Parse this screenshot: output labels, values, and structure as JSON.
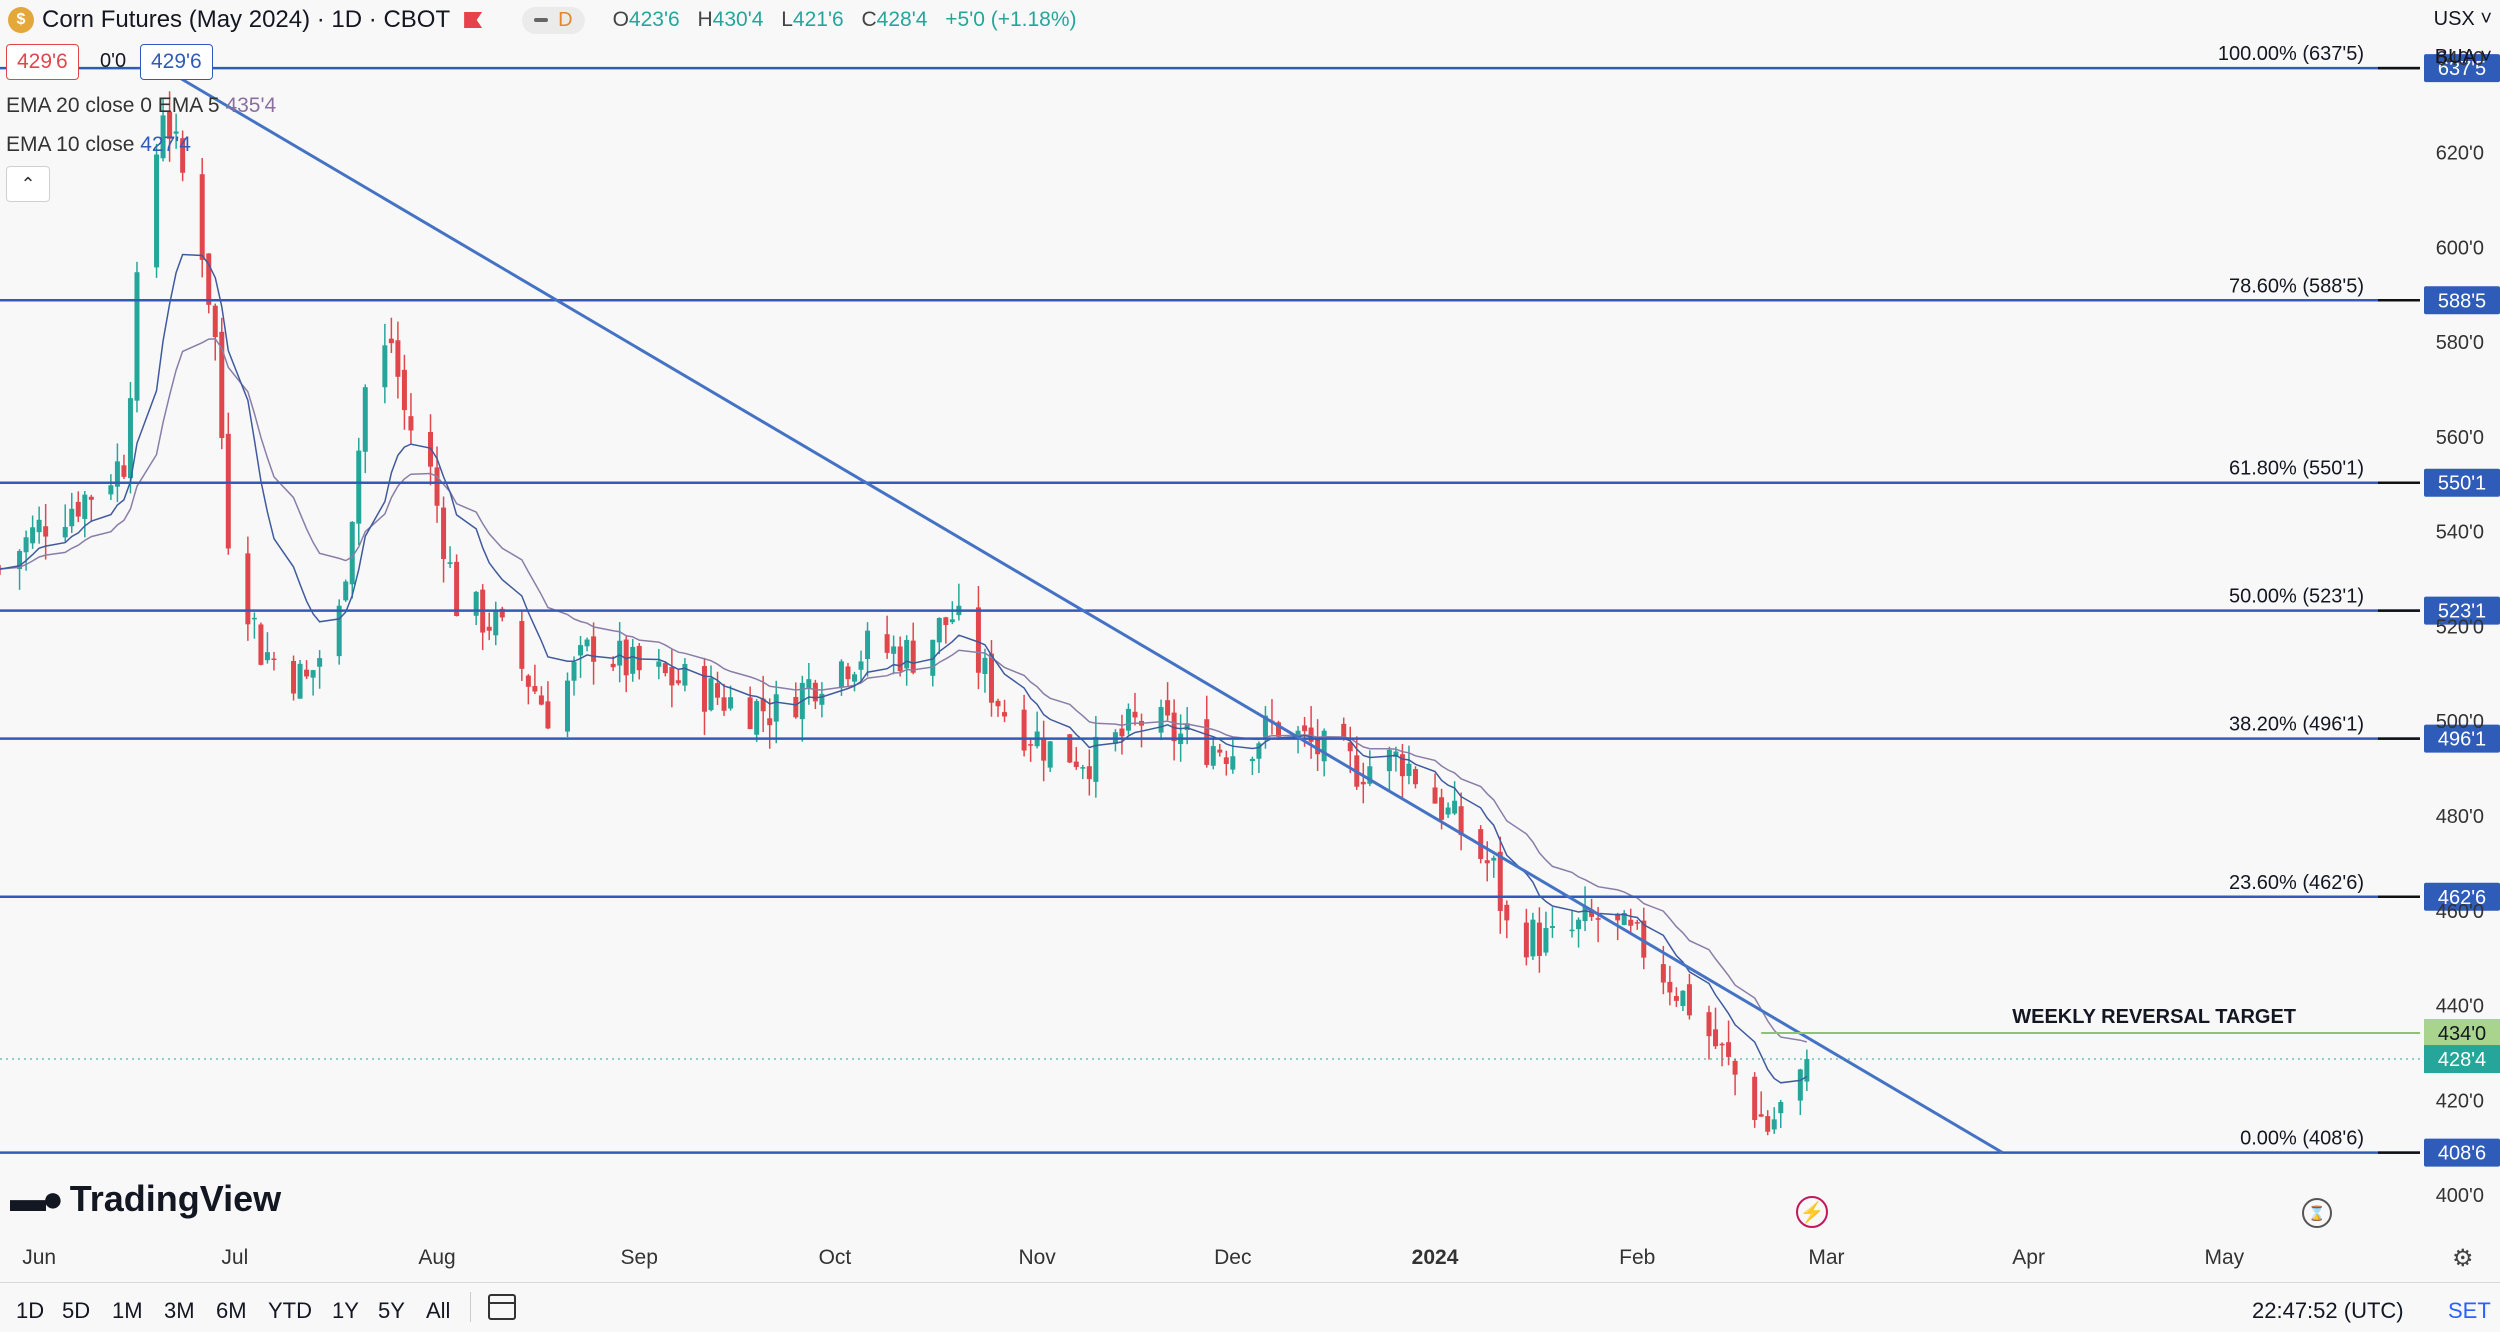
{
  "header": {
    "title": "Corn Futures (May 2024) · 1D · CBOT",
    "interval_badge": "D",
    "ohlc": {
      "o_label": "O",
      "o": "423'6",
      "h_label": "H",
      "h": "430'4",
      "l_label": "L",
      "l": "421'6",
      "c_label": "C",
      "c": "428'4",
      "change": "+5'0 (+1.18%)"
    },
    "sell_price": "429'6",
    "spread": "0'0",
    "buy_price": "429'6"
  },
  "indicators": {
    "ema1_label": "EMA 20 close 0 EMA 5",
    "ema1_value": "435'4",
    "ema2_label": "EMA 10 close",
    "ema2_value": "427'4"
  },
  "right_controls": {
    "currency": "USX ˅",
    "unit": "BUA ˅"
  },
  "colors": {
    "up": "#26a69a",
    "down": "#e0474c",
    "fib": "#2f5cb8",
    "trendline": "#4472c4",
    "ema_slow": "#8a7ea8",
    "ema_fast": "#3f5a9e",
    "target": "#8cc474"
  },
  "chart_data": {
    "type": "candlestick",
    "title": "Corn Futures (May 2024) · 1D · CBOT",
    "y_unit": "USX",
    "ylim": [
      392,
      652
    ],
    "y_ticks": [
      {
        "v": 400,
        "label": "400'0"
      },
      {
        "v": 420,
        "label": "420'0"
      },
      {
        "v": 440,
        "label": "440'0"
      },
      {
        "v": 460,
        "label": "460'0"
      },
      {
        "v": 480,
        "label": "480'0"
      },
      {
        "v": 500,
        "label": "500'0"
      },
      {
        "v": 520,
        "label": "520'0"
      },
      {
        "v": 540,
        "label": "540'0"
      },
      {
        "v": 560,
        "label": "560'0"
      },
      {
        "v": 580,
        "label": "580'0"
      },
      {
        "v": 600,
        "label": "600'0"
      },
      {
        "v": 620,
        "label": "620'0"
      },
      {
        "v": 640,
        "label": "640'0"
      }
    ],
    "x_range": [
      "2023-05-26",
      "2024-05-31"
    ],
    "x_labels": [
      {
        "date": "2023-06-01",
        "label": "Jun"
      },
      {
        "date": "2023-07-01",
        "label": "Jul"
      },
      {
        "date": "2023-08-01",
        "label": "Aug"
      },
      {
        "date": "2023-09-01",
        "label": "Sep"
      },
      {
        "date": "2023-10-01",
        "label": "Oct"
      },
      {
        "date": "2023-11-01",
        "label": "Nov"
      },
      {
        "date": "2023-12-01",
        "label": "Dec"
      },
      {
        "date": "2024-01-01",
        "label": "2024"
      },
      {
        "date": "2024-02-01",
        "label": "Feb"
      },
      {
        "date": "2024-03-01",
        "label": "Mar"
      },
      {
        "date": "2024-04-01",
        "label": "Apr"
      },
      {
        "date": "2024-05-01",
        "label": "May"
      }
    ],
    "fib_levels": [
      {
        "label": "100.00% (637'5)",
        "tag": "637'5",
        "value": 637.625
      },
      {
        "label": "78.60% (588'5)",
        "tag": "588'5",
        "value": 588.625
      },
      {
        "label": "61.80% (550'1)",
        "tag": "550'1",
        "value": 550.125
      },
      {
        "label": "50.00% (523'1)",
        "tag": "523'1",
        "value": 523.125
      },
      {
        "label": "38.20% (496'1)",
        "tag": "496'1",
        "value": 496.125
      },
      {
        "label": "23.60% (462'6)",
        "tag": "462'6",
        "value": 462.75
      },
      {
        "label": "0.00% (408'6)",
        "tag": "408'6",
        "value": 408.75
      }
    ],
    "target": {
      "label": "WEEKLY REVERSAL TARGET",
      "tag": "434'0",
      "value": 434.0,
      "from_date": "2024-02-20"
    },
    "last_price": {
      "tag": "428'4",
      "value": 428.5
    },
    "trendline": {
      "from": {
        "date": "2023-06-20",
        "value": 637.625
      },
      "to": {
        "date": "2024-03-28",
        "value": 408.75
      }
    },
    "anchor_points": [
      {
        "date": "2023-05-26",
        "value": 532
      },
      {
        "date": "2023-06-02",
        "value": 542
      },
      {
        "date": "2023-06-09",
        "value": 548
      },
      {
        "date": "2023-06-14",
        "value": 555
      },
      {
        "date": "2023-06-16",
        "value": 590
      },
      {
        "date": "2023-06-20",
        "value": 630
      },
      {
        "date": "2023-06-22",
        "value": 620
      },
      {
        "date": "2023-06-26",
        "value": 600
      },
      {
        "date": "2023-06-28",
        "value": 580
      },
      {
        "date": "2023-06-30",
        "value": 540
      },
      {
        "date": "2023-07-05",
        "value": 515
      },
      {
        "date": "2023-07-12",
        "value": 508
      },
      {
        "date": "2023-07-17",
        "value": 522
      },
      {
        "date": "2023-07-19",
        "value": 545
      },
      {
        "date": "2023-07-21",
        "value": 570
      },
      {
        "date": "2023-07-25",
        "value": 580
      },
      {
        "date": "2023-07-27",
        "value": 565
      },
      {
        "date": "2023-07-31",
        "value": 552
      },
      {
        "date": "2023-08-04",
        "value": 525
      },
      {
        "date": "2023-08-10",
        "value": 520
      },
      {
        "date": "2023-08-18",
        "value": 502
      },
      {
        "date": "2023-08-25",
        "value": 516
      },
      {
        "date": "2023-09-01",
        "value": 510
      },
      {
        "date": "2023-09-08",
        "value": 508
      },
      {
        "date": "2023-09-15",
        "value": 504
      },
      {
        "date": "2023-09-22",
        "value": 502
      },
      {
        "date": "2023-09-29",
        "value": 510
      },
      {
        "date": "2023-10-06",
        "value": 515
      },
      {
        "date": "2023-10-13",
        "value": 514
      },
      {
        "date": "2023-10-19",
        "value": 522
      },
      {
        "date": "2023-10-27",
        "value": 502
      },
      {
        "date": "2023-11-03",
        "value": 494
      },
      {
        "date": "2023-11-10",
        "value": 492
      },
      {
        "date": "2023-11-17",
        "value": 500
      },
      {
        "date": "2023-11-24",
        "value": 496
      },
      {
        "date": "2023-12-01",
        "value": 494
      },
      {
        "date": "2023-12-08",
        "value": 499
      },
      {
        "date": "2023-12-15",
        "value": 493
      },
      {
        "date": "2023-12-20",
        "value": 490
      },
      {
        "date": "2023-12-27",
        "value": 492
      },
      {
        "date": "2024-01-03",
        "value": 480
      },
      {
        "date": "2024-01-10",
        "value": 468
      },
      {
        "date": "2024-01-12",
        "value": 456
      },
      {
        "date": "2024-01-19",
        "value": 453
      },
      {
        "date": "2024-01-26",
        "value": 458
      },
      {
        "date": "2024-02-02",
        "value": 452
      },
      {
        "date": "2024-02-09",
        "value": 440
      },
      {
        "date": "2024-02-16",
        "value": 425
      },
      {
        "date": "2024-02-21",
        "value": 414
      },
      {
        "date": "2024-02-23",
        "value": 418
      },
      {
        "date": "2024-02-26",
        "value": 423
      },
      {
        "date": "2024-02-27",
        "value": 428.5
      }
    ],
    "ema_labels": [
      "EMA 20",
      "EMA 10"
    ]
  },
  "bottom": {
    "ranges": [
      "1D",
      "5D",
      "1M",
      "3M",
      "6M",
      "YTD",
      "1Y",
      "5Y",
      "All"
    ],
    "clock": "22:47:52 (UTC)",
    "set_button": "SET"
  },
  "brand": {
    "name": "TradingView"
  }
}
